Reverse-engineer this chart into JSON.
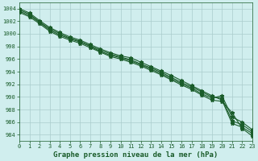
{
  "title": "Graphe pression niveau de la mer (hPa)",
  "background_color": "#d0eeee",
  "grid_color": "#aacccc",
  "line_color": "#1a5c2a",
  "xlim": [
    0,
    23
  ],
  "ylim": [
    983,
    1005
  ],
  "yticks": [
    984,
    986,
    988,
    990,
    992,
    994,
    996,
    998,
    1000,
    1002,
    1004
  ],
  "xticks": [
    0,
    1,
    2,
    3,
    4,
    5,
    6,
    7,
    8,
    9,
    10,
    11,
    12,
    13,
    14,
    15,
    16,
    17,
    18,
    19,
    20,
    21,
    22,
    23
  ],
  "series": [
    [
      1004.0,
      1003.3,
      1002.1,
      1001.0,
      1000.2,
      999.5,
      999.0,
      998.3,
      997.6,
      997.0,
      996.5,
      996.2,
      995.5,
      994.8,
      994.1,
      993.4,
      992.6,
      991.8,
      991.0,
      990.2,
      989.5,
      985.8,
      985.2,
      984.2
    ],
    [
      1003.8,
      1003.1,
      1001.9,
      1000.8,
      1000.0,
      999.3,
      998.8,
      998.1,
      997.4,
      996.8,
      996.3,
      995.9,
      995.2,
      994.6,
      993.9,
      993.1,
      992.3,
      991.6,
      990.8,
      990.0,
      989.8,
      986.2,
      985.6,
      984.5
    ],
    [
      1003.6,
      1002.9,
      1001.8,
      1000.6,
      999.8,
      999.2,
      998.7,
      998.0,
      997.2,
      996.6,
      996.2,
      995.7,
      995.1,
      994.4,
      993.7,
      992.9,
      992.1,
      991.4,
      990.5,
      989.8,
      990.2,
      986.8,
      986.0,
      984.8
    ],
    [
      1003.4,
      1002.7,
      1001.6,
      1000.4,
      999.6,
      999.0,
      998.5,
      997.8,
      997.1,
      996.4,
      996.0,
      995.5,
      994.9,
      994.2,
      993.5,
      992.7,
      991.9,
      991.2,
      990.3,
      989.5,
      989.3,
      987.5,
      985.0,
      983.8
    ]
  ],
  "marker": "*",
  "marker_size": 3.5,
  "linewidth": 0.8,
  "title_fontsize": 6.5,
  "tick_fontsize": 5.0
}
